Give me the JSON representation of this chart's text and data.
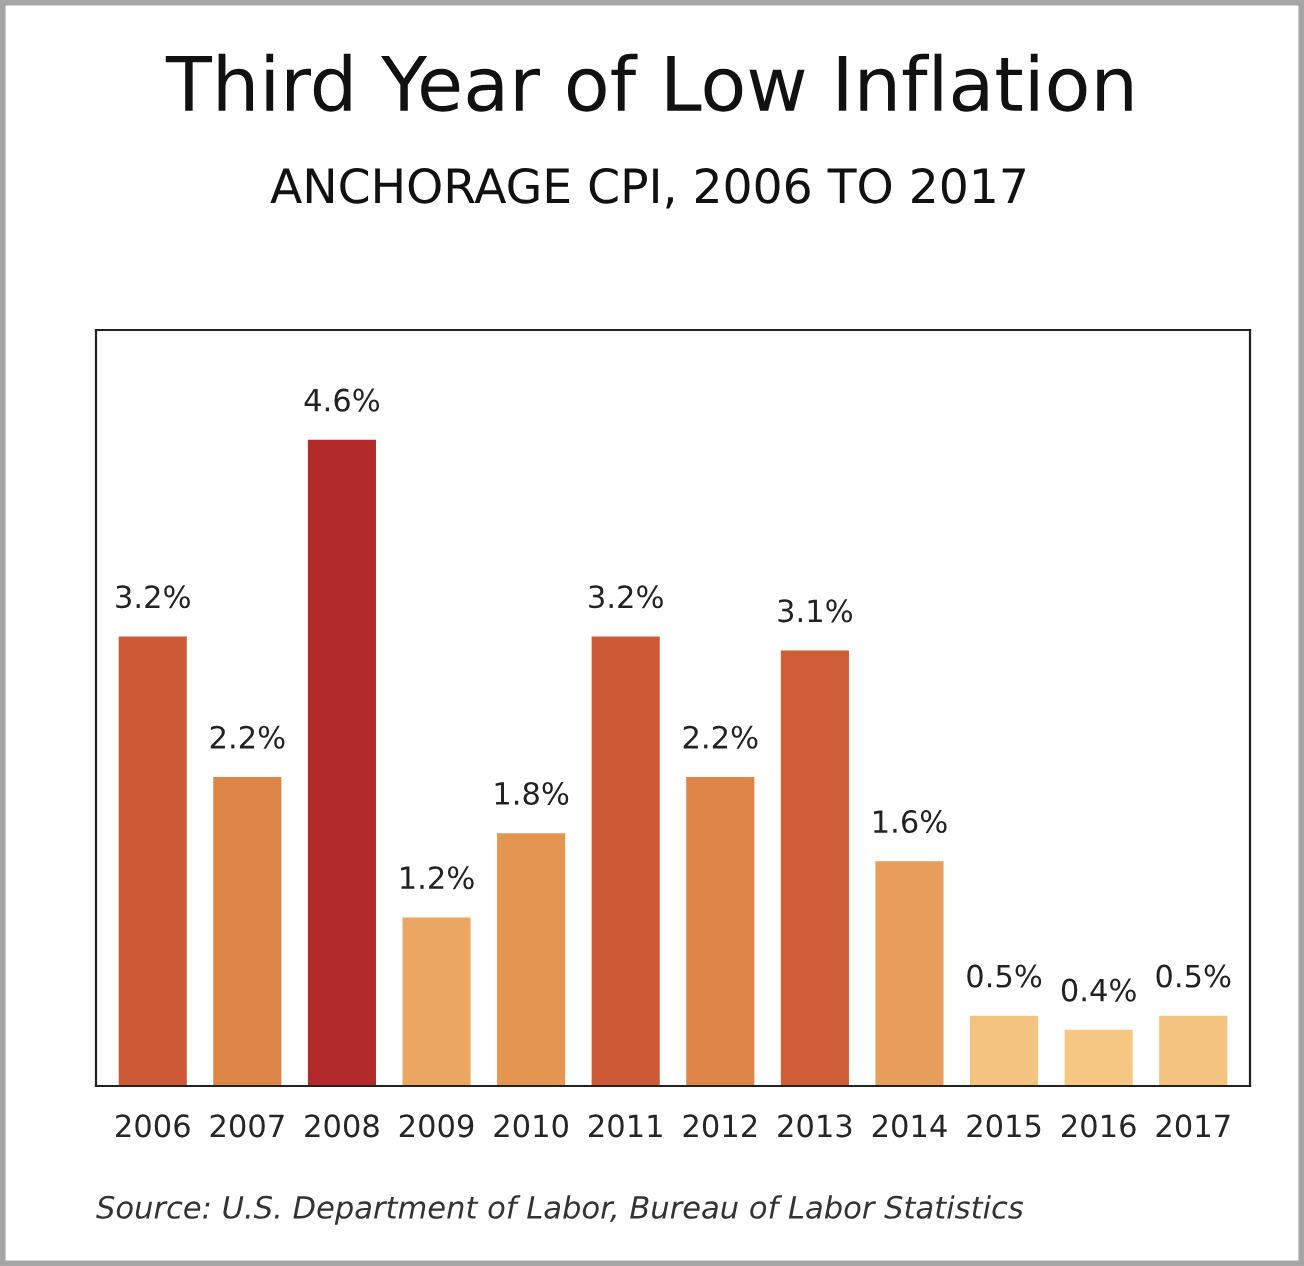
{
  "chart_data": {
    "type": "bar",
    "title": "Third Year of Low Inflation",
    "subtitle": "ANCHORAGE CPI, 2006 TO 2017",
    "categories": [
      "2006",
      "2007",
      "2008",
      "2009",
      "2010",
      "2011",
      "2012",
      "2013",
      "2014",
      "2015",
      "2016",
      "2017"
    ],
    "values": [
      3.2,
      2.2,
      4.6,
      1.2,
      1.8,
      3.2,
      2.2,
      3.1,
      1.6,
      0.5,
      0.4,
      0.5
    ],
    "value_labels": [
      "3.2%",
      "2.2%",
      "4.6%",
      "1.2%",
      "1.8%",
      "3.2%",
      "2.2%",
      "3.1%",
      "1.6%",
      "0.5%",
      "0.4%",
      "0.5%"
    ],
    "colors": [
      "#cc5a36",
      "#de8548",
      "#b32a2a",
      "#eba762",
      "#e49552",
      "#cc5a36",
      "#de8548",
      "#cf5e37",
      "#e89e5b",
      "#f4c380",
      "#f5c783",
      "#f4c380"
    ],
    "annotations": [
      "Source: U.S. Department of Labor, Bureau of Labor Statistics"
    ],
    "grid": false,
    "legend": false
  }
}
